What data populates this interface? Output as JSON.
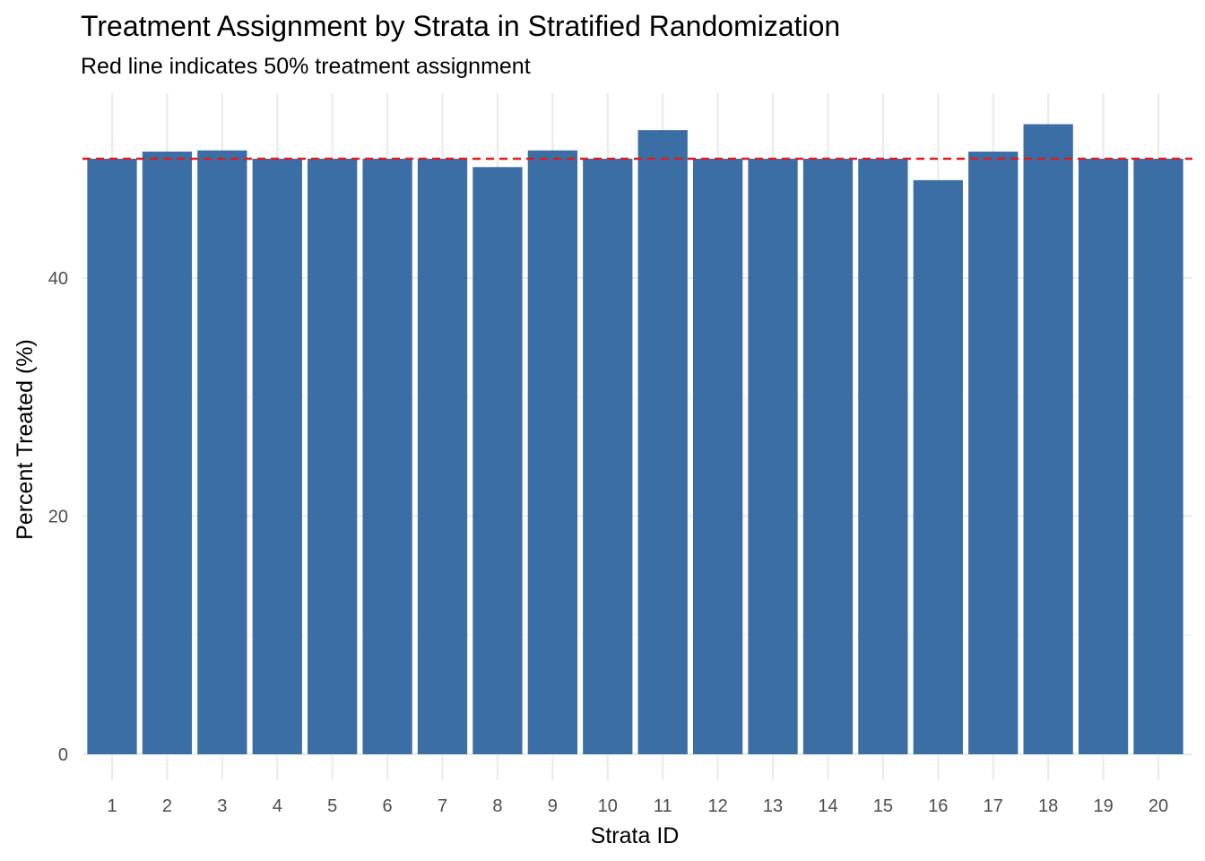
{
  "chart_data": {
    "type": "bar",
    "title": "Treatment Assignment by Strata in Stratified Randomization",
    "subtitle": "Red line indicates 50% treatment assignment",
    "xlabel": "Strata ID",
    "ylabel": "Percent Treated (%)",
    "categories": [
      "1",
      "2",
      "3",
      "4",
      "5",
      "6",
      "7",
      "8",
      "9",
      "10",
      "11",
      "12",
      "13",
      "14",
      "15",
      "16",
      "17",
      "18",
      "19",
      "20"
    ],
    "values": [
      50.0,
      50.6,
      50.7,
      50.0,
      50.0,
      50.0,
      50.0,
      49.3,
      50.7,
      50.0,
      52.4,
      50.0,
      50.0,
      50.0,
      50.0,
      48.2,
      50.6,
      52.9,
      50.0,
      50.0
    ],
    "yticks": [
      0,
      20,
      40
    ],
    "ylim": [
      0,
      52.9
    ],
    "reference_line": {
      "y": 50,
      "color": "#e41a1c",
      "style": "dashed"
    },
    "bar_color": "#3a6ea5",
    "grid": true,
    "legend": "none"
  }
}
